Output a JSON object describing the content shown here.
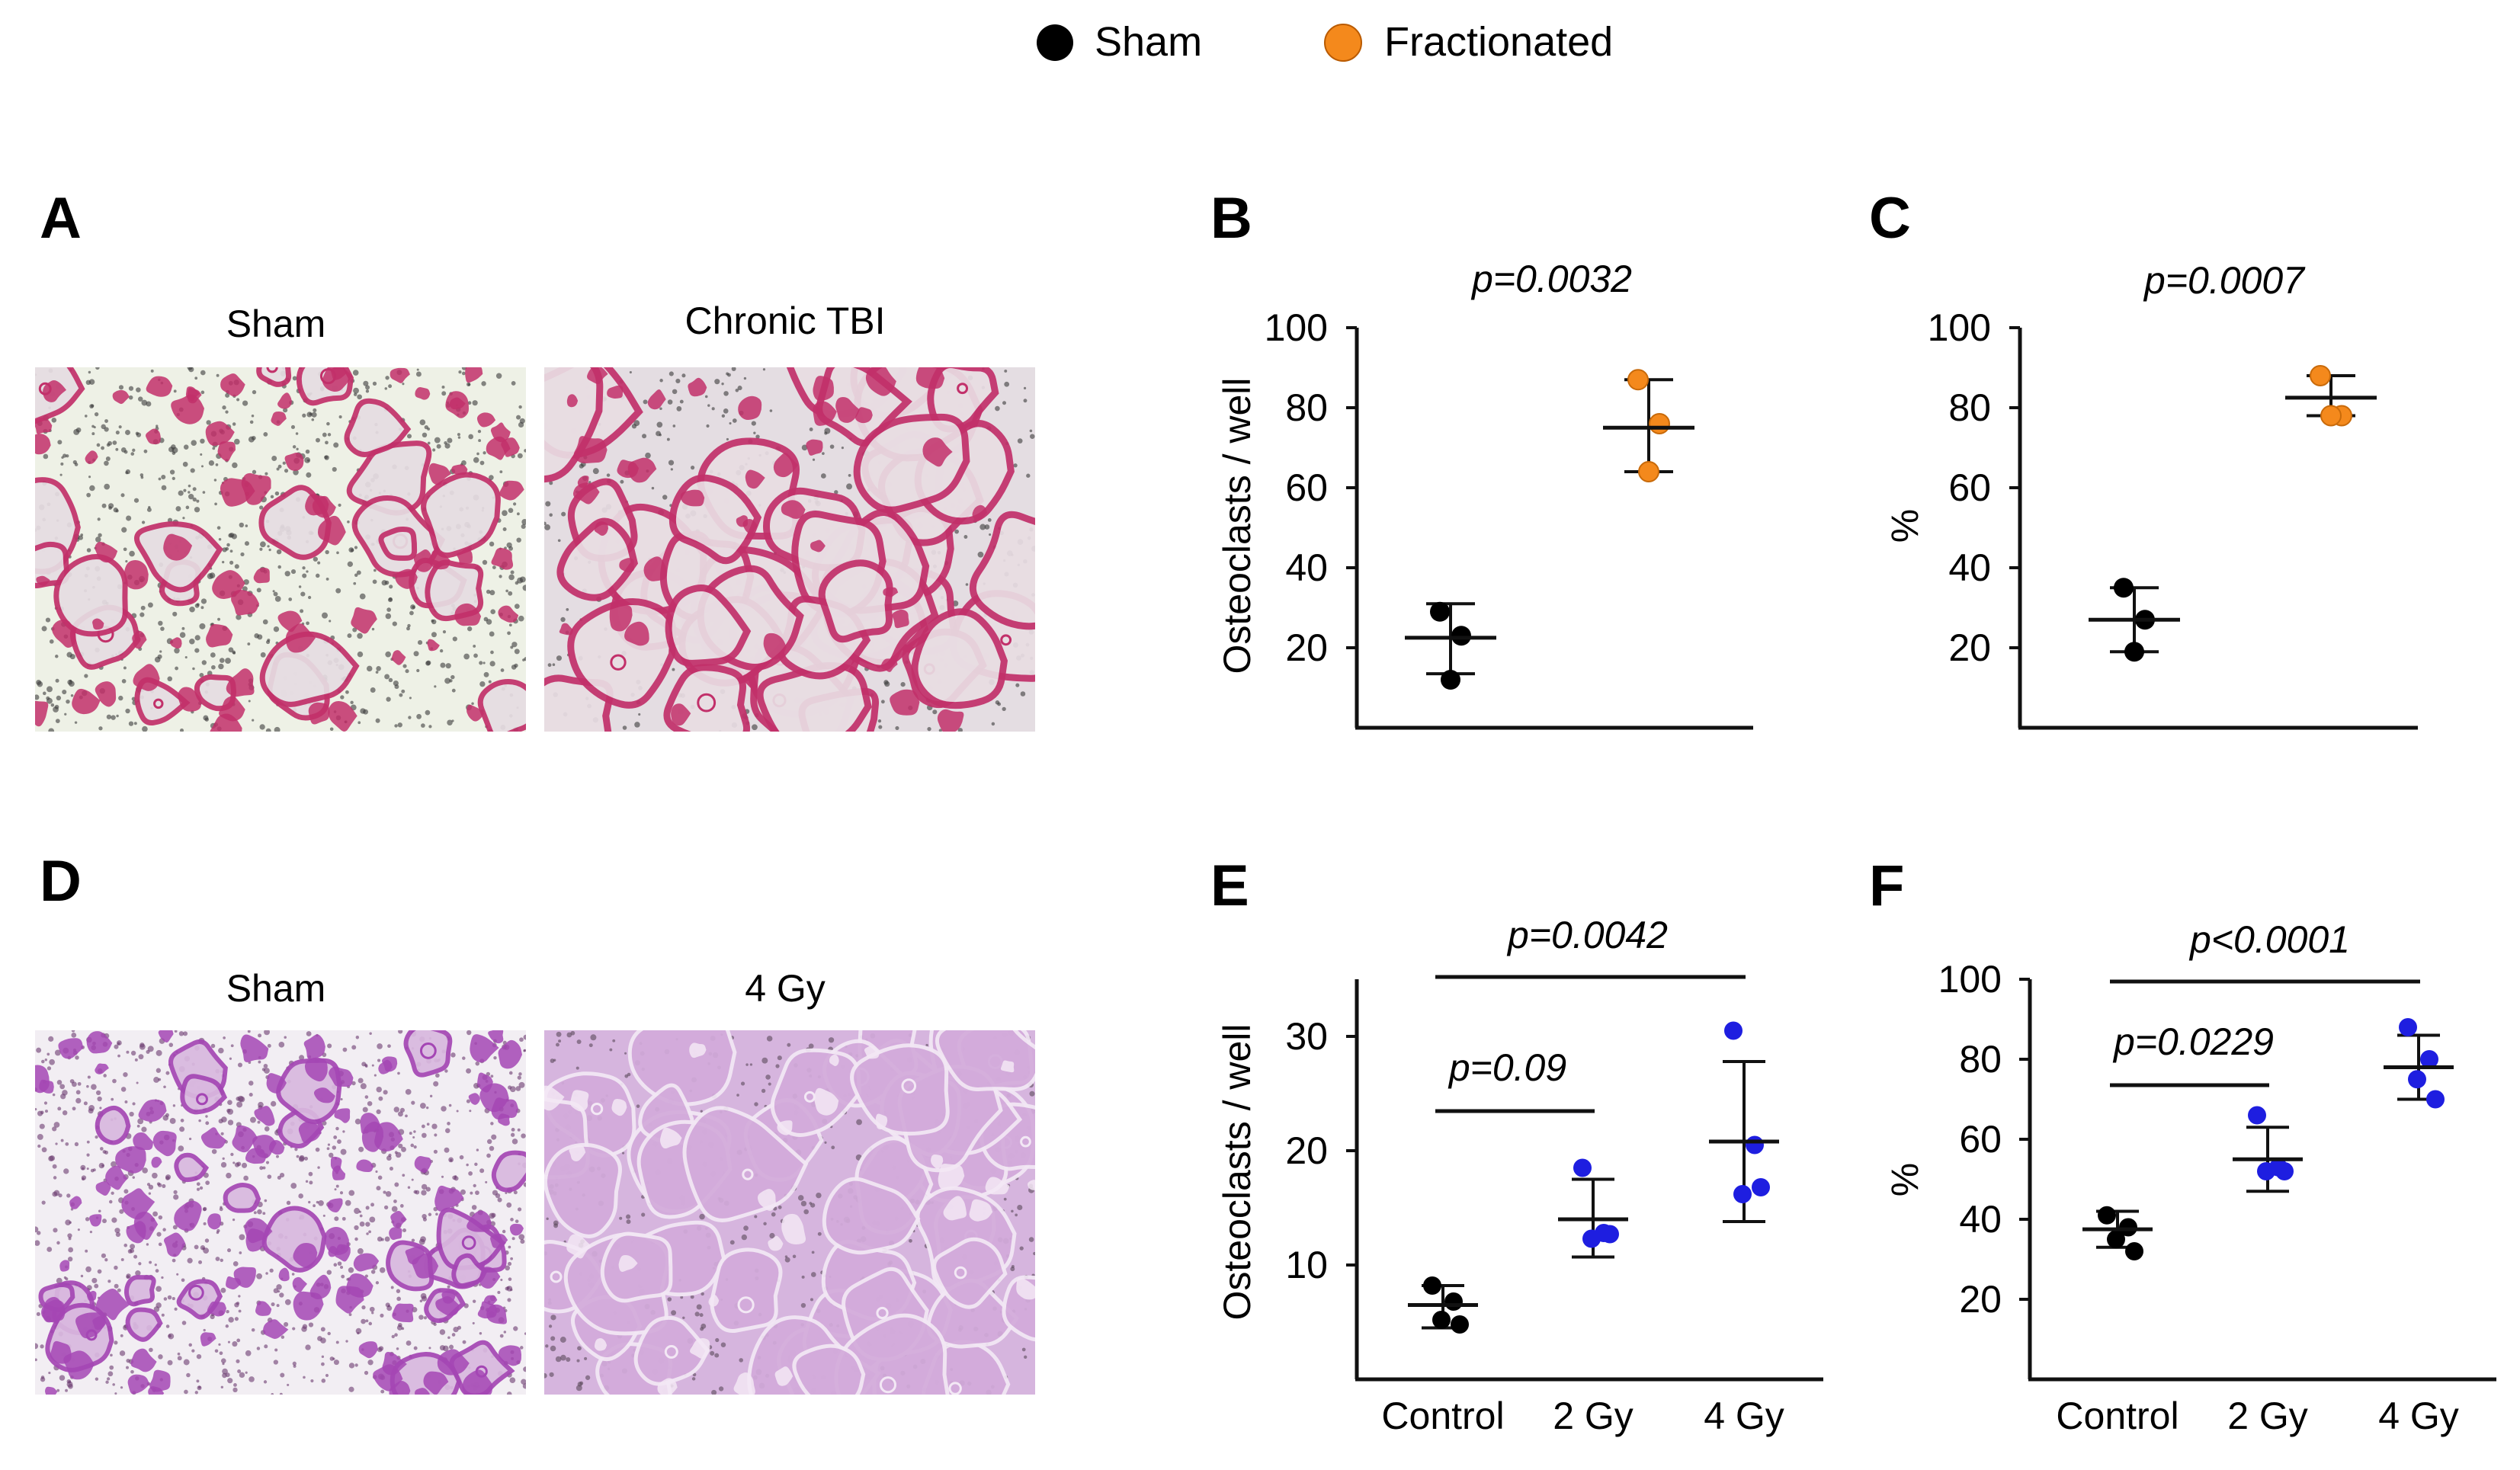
{
  "legend": [
    {
      "label": "Sham",
      "color": "#000000"
    },
    {
      "label": "Fractionated",
      "color": "#f4891c"
    }
  ],
  "panels": {
    "A": {
      "letter": "A",
      "image_titles": [
        "Sham",
        "Chronic TBI"
      ]
    },
    "D": {
      "letter": "D",
      "image_titles": [
        "Sham",
        "4 Gy"
      ]
    }
  },
  "colors": {
    "sham": "#000000",
    "fractionated": "#f4891c",
    "irradiated": "#1e1ee0",
    "axis": "#111111",
    "stain_A": "#c2306a",
    "stain_D": "#a446b4"
  },
  "chart_data": [
    {
      "panel": "B",
      "type": "scatter",
      "ylabel": "Osteoclasts  / well",
      "yticks": [
        20,
        40,
        60,
        80,
        100
      ],
      "ylim": [
        0,
        100
      ],
      "pvalues": [
        {
          "text": "p=0.0032",
          "from": 0,
          "to": 1,
          "bracket": false
        }
      ],
      "series": [
        {
          "name": "Sham",
          "color": "#000000",
          "points": [
            29,
            23,
            12
          ],
          "mean": 22.5,
          "sd_low": 13.5,
          "sd_high": 31
        },
        {
          "name": "Fractionated",
          "color": "#f4891c",
          "points": [
            87,
            76,
            64
          ],
          "mean": 75,
          "sd_low": 64,
          "sd_high": 87
        }
      ]
    },
    {
      "panel": "C",
      "type": "scatter",
      "ylabel": "%",
      "yticks": [
        20,
        40,
        60,
        80,
        100
      ],
      "ylim": [
        0,
        100
      ],
      "pvalues": [
        {
          "text": "p=0.0007",
          "from": 0,
          "to": 1,
          "bracket": false
        }
      ],
      "series": [
        {
          "name": "Sham",
          "color": "#000000",
          "points": [
            35,
            27,
            19
          ],
          "mean": 27,
          "sd_low": 19,
          "sd_high": 35
        },
        {
          "name": "Fractionated",
          "color": "#f4891c",
          "points": [
            88,
            78,
            78
          ],
          "mean": 82.5,
          "sd_low": 78,
          "sd_high": 88
        }
      ]
    },
    {
      "panel": "E",
      "type": "scatter",
      "ylabel": "Osteoclasts  / well",
      "categories": [
        "Control",
        "2 Gy",
        "4 Gy"
      ],
      "yticks": [
        10,
        20,
        30
      ],
      "ylim": [
        0,
        35
      ],
      "pvalues": [
        {
          "text": "p=0.09",
          "from": 0,
          "to": 1,
          "bracket": true
        },
        {
          "text": "p=0.0042",
          "from": 0,
          "to": 2,
          "bracket": true
        }
      ],
      "series": [
        {
          "name": "Control",
          "color": "#000000",
          "points": [
            8.2,
            6.8,
            5.2,
            4.8
          ],
          "mean": 6.5,
          "sd_low": 4.5,
          "sd_high": 8.2
        },
        {
          "name": "2 Gy",
          "color": "#1e1ee0",
          "points": [
            18.5,
            12.8,
            12.3,
            12.7
          ],
          "mean": 14,
          "sd_low": 10.7,
          "sd_high": 17.5
        },
        {
          "name": "4 Gy",
          "color": "#1e1ee0",
          "points": [
            30.5,
            20.5,
            16.2,
            16.8
          ],
          "mean": 20.8,
          "sd_low": 13.8,
          "sd_high": 27.8
        }
      ]
    },
    {
      "panel": "F",
      "type": "scatter",
      "ylabel": "%",
      "categories": [
        "Control",
        "2 Gy",
        "4 Gy"
      ],
      "yticks": [
        20,
        40,
        60,
        80,
        100
      ],
      "ylim": [
        0,
        100
      ],
      "pvalues": [
        {
          "text": "p=0.0229",
          "from": 0,
          "to": 1,
          "bracket": true
        },
        {
          "text": "p<0.0001",
          "from": 0,
          "to": 2,
          "bracket": true
        }
      ],
      "series": [
        {
          "name": "Control",
          "color": "#000000",
          "points": [
            41,
            38,
            35,
            32
          ],
          "mean": 37.5,
          "sd_low": 33,
          "sd_high": 42
        },
        {
          "name": "2 Gy",
          "color": "#1e1ee0",
          "points": [
            66,
            53,
            52,
            52
          ],
          "mean": 55,
          "sd_low": 47,
          "sd_high": 63
        },
        {
          "name": "4 Gy",
          "color": "#1e1ee0",
          "points": [
            88,
            80,
            75,
            70
          ],
          "mean": 78,
          "sd_low": 70,
          "sd_high": 86
        }
      ]
    }
  ]
}
